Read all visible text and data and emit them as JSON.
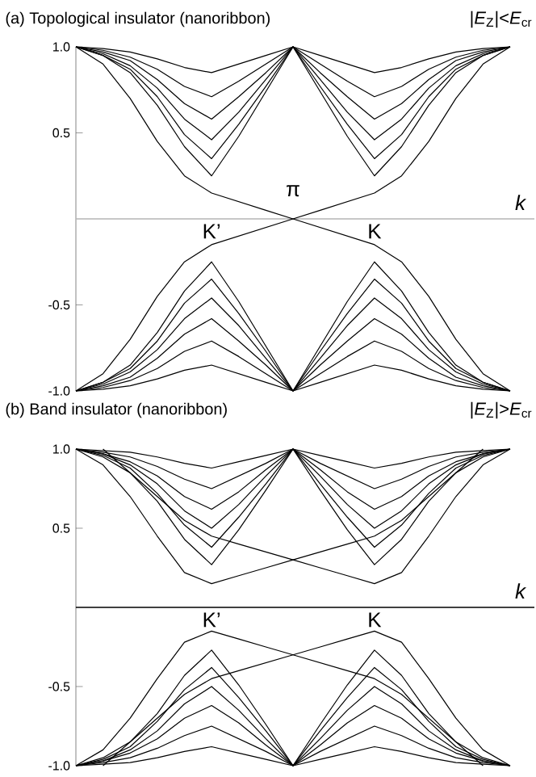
{
  "chart_data": [
    {
      "type": "line",
      "title": "(a) Topological insulator (nanoribbon)",
      "subtitle": "|*E*$_{Z}$|<*E*$_{cr}$",
      "xlabel": "k",
      "annotations": [
        "K’",
        "K",
        "π"
      ],
      "categories": [
        null,
        null,
        null,
        null,
        null,
        null,
        null,
        null,
        null,
        null,
        null,
        null,
        null,
        null,
        null,
        null,
        null
      ],
      "ylim": [
        -1,
        1
      ],
      "yticks": [
        {
          "value": -1,
          "label": "-1.0"
        },
        {
          "value": -0.5,
          "label": "-0.5"
        },
        {
          "value": 0.5,
          "label": "0.5"
        },
        {
          "value": 1,
          "label": "1.0"
        }
      ],
      "tick_labels": "y",
      "marker": "none",
      "line_style": "solid",
      "ref_lines": [
        {
          "axis": "y",
          "value": 0,
          "color": "#b4b4b4"
        }
      ],
      "series": [
        {
          "color": "#000000",
          "values": [
            1,
            0.9,
            0.7,
            0.45,
            0.25,
            0.15,
            0.1,
            0.05,
            0,
            -0.05,
            -0.1,
            -0.15,
            -0.25,
            -0.45,
            -0.7,
            -0.9,
            -1
          ]
        },
        {
          "color": "#000000",
          "values": [
            -1,
            -0.9,
            -0.7,
            -0.45,
            -0.25,
            -0.15,
            -0.1,
            -0.05,
            0,
            0.05,
            0.1,
            0.15,
            0.25,
            0.45,
            0.7,
            0.9,
            1
          ]
        },
        {
          "color": "#000000",
          "values": [
            1,
            0.95,
            0.85,
            0.66,
            0.42,
            0.25,
            0.48,
            0.74,
            1,
            0.74,
            0.48,
            0.25,
            0.42,
            0.66,
            0.85,
            0.95,
            1
          ]
        },
        {
          "color": "#000000",
          "values": [
            1,
            0.95,
            0.87,
            0.71,
            0.49,
            0.35,
            0.55,
            0.77,
            1,
            0.77,
            0.55,
            0.35,
            0.49,
            0.71,
            0.87,
            0.95,
            1
          ]
        },
        {
          "color": "#000000",
          "values": [
            1,
            0.96,
            0.89,
            0.76,
            0.58,
            0.46,
            0.62,
            0.81,
            1,
            0.81,
            0.62,
            0.46,
            0.58,
            0.76,
            0.89,
            0.96,
            1
          ]
        },
        {
          "color": "#000000",
          "values": [
            1,
            0.97,
            0.92,
            0.81,
            0.67,
            0.58,
            0.71,
            0.85,
            1,
            0.85,
            0.71,
            0.58,
            0.67,
            0.81,
            0.92,
            0.97,
            1
          ]
        },
        {
          "color": "#000000",
          "values": [
            1,
            0.98,
            0.94,
            0.87,
            0.77,
            0.71,
            0.8,
            0.9,
            1,
            0.9,
            0.8,
            0.71,
            0.77,
            0.87,
            0.94,
            0.98,
            1
          ]
        },
        {
          "color": "#000000",
          "values": [
            1,
            0.99,
            0.97,
            0.93,
            0.88,
            0.85,
            0.9,
            0.95,
            1,
            0.95,
            0.9,
            0.85,
            0.88,
            0.93,
            0.97,
            0.99,
            1
          ]
        },
        {
          "color": "#000000",
          "values": [
            -1,
            -0.95,
            -0.85,
            -0.66,
            -0.42,
            -0.25,
            -0.48,
            -0.74,
            -1,
            -0.74,
            -0.48,
            -0.25,
            -0.42,
            -0.66,
            -0.85,
            -0.95,
            -1
          ]
        },
        {
          "color": "#000000",
          "values": [
            -1,
            -0.95,
            -0.87,
            -0.71,
            -0.49,
            -0.35,
            -0.55,
            -0.77,
            -1,
            -0.77,
            -0.55,
            -0.35,
            -0.49,
            -0.71,
            -0.87,
            -0.95,
            -1
          ]
        },
        {
          "color": "#000000",
          "values": [
            -1,
            -0.96,
            -0.89,
            -0.76,
            -0.58,
            -0.46,
            -0.62,
            -0.81,
            -1,
            -0.81,
            -0.62,
            -0.46,
            -0.58,
            -0.76,
            -0.89,
            -0.96,
            -1
          ]
        },
        {
          "color": "#000000",
          "values": [
            -1,
            -0.97,
            -0.92,
            -0.81,
            -0.67,
            -0.58,
            -0.71,
            -0.85,
            -1,
            -0.85,
            -0.71,
            -0.58,
            -0.67,
            -0.81,
            -0.92,
            -0.97,
            -1
          ]
        },
        {
          "color": "#000000",
          "values": [
            -1,
            -0.98,
            -0.94,
            -0.87,
            -0.77,
            -0.71,
            -0.8,
            -0.9,
            -1,
            -0.9,
            -0.8,
            -0.71,
            -0.77,
            -0.87,
            -0.94,
            -0.98,
            -1
          ]
        },
        {
          "color": "#000000",
          "values": [
            -1,
            -0.99,
            -0.97,
            -0.93,
            -0.88,
            -0.85,
            -0.9,
            -0.95,
            -1,
            -0.95,
            -0.9,
            -0.85,
            -0.88,
            -0.93,
            -0.97,
            -0.99,
            -1
          ]
        }
      ]
    },
    {
      "type": "line",
      "title": "(b) Band insulator (nanoribbon)",
      "subtitle": "|*E*$_{Z}$|>*E*$_{cr}$",
      "xlabel": "k",
      "annotations": [
        "K’",
        "K"
      ],
      "categories": [
        null,
        null,
        null,
        null,
        null,
        null,
        null,
        null,
        null,
        null,
        null,
        null,
        null,
        null,
        null,
        null,
        null
      ],
      "ylim": [
        -1,
        1
      ],
      "yticks": [
        {
          "value": -1,
          "label": "-1.0"
        },
        {
          "value": -0.5,
          "label": "-0.5"
        },
        {
          "value": 0.5,
          "label": "0.5"
        },
        {
          "value": 1,
          "label": "1.0"
        }
      ],
      "tick_labels": "y",
      "marker": "none",
      "line_style": "solid",
      "ref_lines": [
        {
          "axis": "y",
          "value": 0,
          "color": "#000000"
        }
      ],
      "series": [
        {
          "color": "#000000",
          "values": [
            1,
            0.9,
            0.7,
            0.45,
            0.22,
            0.15,
            0.2,
            0.25,
            0.3,
            0.35,
            0.4,
            0.45,
            0.55,
            0.7,
            0.85,
            1,
            null
          ]
        },
        {
          "color": "#000000",
          "values": [
            null,
            1,
            0.85,
            0.7,
            0.55,
            0.45,
            0.4,
            0.35,
            0.3,
            0.25,
            0.2,
            0.15,
            0.22,
            0.45,
            0.7,
            0.9,
            1
          ]
        },
        {
          "color": "#000000",
          "values": [
            1,
            0.95,
            0.85,
            0.67,
            0.43,
            0.27,
            0.49,
            0.74,
            1,
            0.74,
            0.49,
            0.27,
            0.43,
            0.67,
            0.85,
            0.95,
            1
          ]
        },
        {
          "color": "#000000",
          "values": [
            1,
            0.96,
            0.88,
            0.72,
            0.52,
            0.38,
            0.57,
            0.78,
            1,
            0.78,
            0.57,
            0.38,
            0.52,
            0.72,
            0.88,
            0.96,
            1
          ]
        },
        {
          "color": "#000000",
          "values": [
            1,
            0.97,
            0.9,
            0.78,
            0.61,
            0.5,
            0.65,
            0.83,
            1,
            0.83,
            0.65,
            0.5,
            0.61,
            0.78,
            0.9,
            0.97,
            1
          ]
        },
        {
          "color": "#000000",
          "values": [
            1,
            0.97,
            0.92,
            0.83,
            0.7,
            0.62,
            0.73,
            0.87,
            1,
            0.87,
            0.73,
            0.62,
            0.7,
            0.83,
            0.92,
            0.97,
            1
          ]
        },
        {
          "color": "#000000",
          "values": [
            1,
            0.98,
            0.95,
            0.89,
            0.81,
            0.75,
            0.83,
            0.91,
            1,
            0.91,
            0.83,
            0.75,
            0.81,
            0.89,
            0.95,
            0.98,
            1
          ]
        },
        {
          "color": "#000000",
          "values": [
            1,
            0.99,
            0.98,
            0.95,
            0.91,
            0.88,
            0.92,
            0.96,
            1,
            0.96,
            0.92,
            0.88,
            0.91,
            0.95,
            0.98,
            0.99,
            1
          ]
        },
        {
          "color": "#000000",
          "values": [
            -1,
            -0.9,
            -0.7,
            -0.45,
            -0.22,
            -0.15,
            -0.2,
            -0.25,
            -0.3,
            -0.35,
            -0.4,
            -0.45,
            -0.55,
            -0.7,
            -0.85,
            -1,
            null
          ]
        },
        {
          "color": "#000000",
          "values": [
            null,
            -1,
            -0.85,
            -0.7,
            -0.55,
            -0.45,
            -0.4,
            -0.35,
            -0.3,
            -0.25,
            -0.2,
            -0.15,
            -0.22,
            -0.45,
            -0.7,
            -0.9,
            -1
          ]
        },
        {
          "color": "#000000",
          "values": [
            -1,
            -0.95,
            -0.85,
            -0.67,
            -0.43,
            -0.27,
            -0.49,
            -0.74,
            -1,
            -0.74,
            -0.49,
            -0.27,
            -0.43,
            -0.67,
            -0.85,
            -0.95,
            -1
          ]
        },
        {
          "color": "#000000",
          "values": [
            -1,
            -0.96,
            -0.88,
            -0.72,
            -0.52,
            -0.38,
            -0.57,
            -0.78,
            -1,
            -0.78,
            -0.57,
            -0.38,
            -0.52,
            -0.72,
            -0.88,
            -0.96,
            -1
          ]
        },
        {
          "color": "#000000",
          "values": [
            -1,
            -0.97,
            -0.9,
            -0.78,
            -0.61,
            -0.5,
            -0.65,
            -0.83,
            -1,
            -0.83,
            -0.65,
            -0.5,
            -0.61,
            -0.78,
            -0.9,
            -0.97,
            -1
          ]
        },
        {
          "color": "#000000",
          "values": [
            -1,
            -0.97,
            -0.92,
            -0.83,
            -0.7,
            -0.62,
            -0.73,
            -0.87,
            -1,
            -0.87,
            -0.73,
            -0.62,
            -0.7,
            -0.83,
            -0.92,
            -0.97,
            -1
          ]
        },
        {
          "color": "#000000",
          "values": [
            -1,
            -0.98,
            -0.95,
            -0.89,
            -0.81,
            -0.75,
            -0.83,
            -0.91,
            -1,
            -0.91,
            -0.83,
            -0.75,
            -0.81,
            -0.89,
            -0.95,
            -0.98,
            -1
          ]
        },
        {
          "color": "#000000",
          "values": [
            -1,
            -0.99,
            -0.98,
            -0.95,
            -0.91,
            -0.88,
            -0.92,
            -0.96,
            -1,
            -0.96,
            -0.92,
            -0.88,
            -0.91,
            -0.95,
            -0.98,
            -0.99,
            -1
          ]
        }
      ]
    }
  ]
}
